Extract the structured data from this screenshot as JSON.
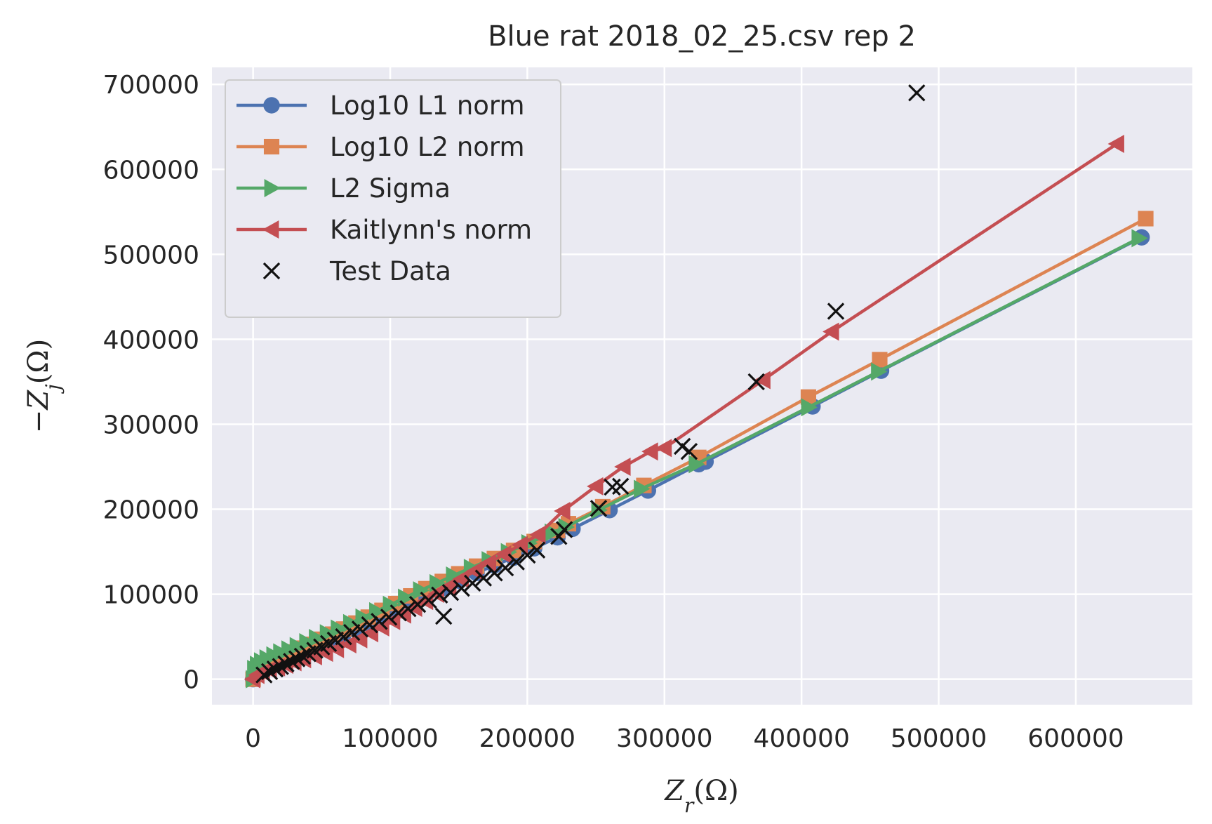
{
  "chart_data": {
    "type": "scatter",
    "title": "Blue rat 2018_02_25.csv rep 2",
    "xlabel": "Z_r(Ω)",
    "ylabel": "−Z_j(Ω)",
    "xlim": [
      -30000,
      685000
    ],
    "ylim": [
      -30000,
      720000
    ],
    "xticks": [
      0,
      100000,
      200000,
      300000,
      400000,
      500000,
      600000
    ],
    "yticks": [
      0,
      100000,
      200000,
      300000,
      400000,
      500000,
      600000,
      700000
    ],
    "grid": true,
    "legend_position": "upper-left",
    "series": [
      {
        "name": "Log10 L1 norm",
        "color": "#4c72b0",
        "marker": "circle",
        "style": "line",
        "x": [
          0,
          2000,
          5000,
          10000,
          15000,
          20000,
          25000,
          30000,
          36000,
          42000,
          50000,
          58000,
          66000,
          75000,
          84000,
          94000,
          104000,
          115000,
          126000,
          138000,
          150000,
          163000,
          176000,
          190000,
          205000,
          222000,
          233000,
          260000,
          288000,
          325000,
          330000,
          408000,
          458000,
          648000
        ],
        "y": [
          0,
          6000,
          10000,
          14000,
          18000,
          22000,
          25500,
          29000,
          33000,
          37000,
          42000,
          47500,
          53000,
          59500,
          66000,
          73500,
          81000,
          90000,
          98500,
          107000,
          116000,
          125000,
          134000,
          143000,
          154000,
          167000,
          177000,
          199000,
          222000,
          253000,
          256000,
          321000,
          363000,
          520000
        ]
      },
      {
        "name": "Log10 L2 norm",
        "color": "#dd8452",
        "marker": "square",
        "style": "line",
        "x": [
          0,
          2000,
          5000,
          10000,
          15000,
          20000,
          25000,
          30000,
          36000,
          42000,
          50000,
          58000,
          66000,
          75000,
          84000,
          94000,
          104000,
          115000,
          126000,
          138000,
          150000,
          163000,
          176000,
          190000,
          205000,
          222000,
          230000,
          255000,
          285000,
          325000,
          405000,
          457000,
          651000
        ],
        "y": [
          0,
          7000,
          12000,
          16000,
          20000,
          24000,
          28000,
          32000,
          36500,
          41000,
          47000,
          53000,
          59000,
          66000,
          73000,
          81000,
          89000,
          98000,
          106500,
          115000,
          124000,
          133000,
          142000,
          151500,
          162000,
          175000,
          183000,
          203000,
          228000,
          261000,
          332000,
          376000,
          542000
        ]
      },
      {
        "name": "L2 Sigma",
        "color": "#55a868",
        "marker": "triangle-right",
        "style": "line",
        "x": [
          0,
          1000,
          3000,
          6000,
          10000,
          15000,
          20000,
          26000,
          32000,
          39000,
          46000,
          54000,
          62000,
          71000,
          80000,
          90000,
          100000,
          111000,
          122000,
          134000,
          146000,
          159000,
          172000,
          186000,
          201000,
          218000,
          228000,
          252000,
          283000,
          323000,
          405000,
          456000,
          646000
        ],
        "y": [
          0,
          12000,
          17000,
          21000,
          24500,
          28000,
          31500,
          35000,
          39000,
          43500,
          48500,
          54000,
          59500,
          66000,
          72500,
          80000,
          87500,
          96000,
          104500,
          113000,
          122000,
          131000,
          140000,
          149500,
          160000,
          172500,
          179000,
          199000,
          224000,
          253000,
          320000,
          362000,
          519000
        ]
      },
      {
        "name": "Kaitlynn's norm",
        "color": "#c44e52",
        "marker": "triangle-left",
        "style": "line",
        "x": [
          0,
          3000,
          7000,
          12000,
          18000,
          24000,
          30000,
          37000,
          45000,
          53000,
          61000,
          70000,
          78000,
          86000,
          94000,
          102000,
          110000,
          118000,
          126000,
          134000,
          143000,
          152000,
          162000,
          172000,
          183000,
          195000,
          208000,
          226000,
          250000,
          270000,
          290000,
          300000,
          372000,
          422000,
          630000
        ],
        "y": [
          0,
          5000,
          8000,
          11000,
          14000,
          17000,
          20000,
          23500,
          27000,
          31000,
          35500,
          41000,
          47000,
          54000,
          61000,
          68500,
          76000,
          84000,
          92000,
          100500,
          109000,
          118000,
          127500,
          137000,
          147000,
          158000,
          170000,
          198000,
          227000,
          250000,
          268000,
          272000,
          352000,
          409000,
          630000
        ]
      },
      {
        "name": "Test Data",
        "color": "#111111",
        "marker": "x",
        "style": "markers",
        "x": [
          8000,
          12000,
          16000,
          20000,
          24000,
          28000,
          32000,
          36000,
          40000,
          45000,
          50000,
          55000,
          60000,
          66000,
          72000,
          78000,
          85000,
          92000,
          99000,
          106000,
          113000,
          120000,
          128000,
          136000,
          139000,
          144000,
          152000,
          160000,
          168000,
          176000,
          184000,
          192000,
          200000,
          207000,
          223000,
          227000,
          252000,
          262000,
          268000,
          313000,
          318000,
          367000,
          425000,
          484000
        ],
        "y": [
          5000,
          9000,
          12000,
          15000,
          18000,
          21000,
          24000,
          27000,
          30000,
          34000,
          38000,
          42000,
          46000,
          50000,
          55000,
          59000,
          64000,
          68000,
          73000,
          78000,
          83000,
          88000,
          93000,
          99000,
          74000,
          102000,
          107000,
          113000,
          119000,
          125000,
          131000,
          138000,
          146000,
          152000,
          168000,
          176000,
          201000,
          226000,
          227000,
          274000,
          268000,
          350000,
          433000,
          690000
        ]
      }
    ]
  }
}
